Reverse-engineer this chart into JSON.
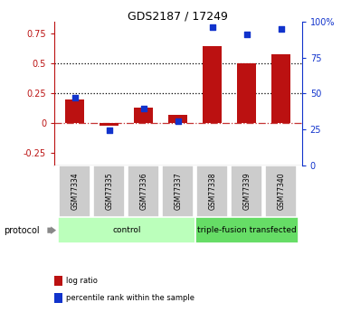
{
  "title": "GDS2187 / 17249",
  "samples": [
    "GSM77334",
    "GSM77335",
    "GSM77336",
    "GSM77337",
    "GSM77338",
    "GSM77339",
    "GSM77340"
  ],
  "log_ratio": [
    0.2,
    -0.02,
    0.13,
    0.07,
    0.65,
    0.5,
    0.58
  ],
  "percentile_rank": [
    47,
    24.5,
    39.5,
    30.5,
    96,
    91,
    95
  ],
  "bar_color": "#bb1111",
  "dot_color": "#1133cc",
  "left_ylim": [
    -0.35,
    0.85
  ],
  "right_ylim": [
    0,
    100
  ],
  "left_yticks": [
    -0.25,
    0.0,
    0.25,
    0.5,
    0.75
  ],
  "right_yticks": [
    0,
    25,
    50,
    75,
    100
  ],
  "left_yticklabels": [
    "-0.25",
    "0",
    "0.25",
    "0.5",
    "0.75"
  ],
  "right_yticklabels": [
    "0",
    "25",
    "50",
    "75",
    "100%"
  ],
  "hlines_black": [
    0.25,
    0.5
  ],
  "hline_red": 0.0,
  "protocol_groups": [
    {
      "label": "control",
      "start": 0,
      "end": 4,
      "color": "#bbffbb"
    },
    {
      "label": "triple-fusion transfected",
      "start": 4,
      "end": 7,
      "color": "#66dd66"
    }
  ],
  "protocol_label": "protocol",
  "legend_items": [
    {
      "label": "log ratio",
      "color": "#bb1111"
    },
    {
      "label": "percentile rank within the sample",
      "color": "#1133cc"
    }
  ],
  "sample_box_color": "#cccccc",
  "title_fontsize": 9,
  "tick_fontsize": 7,
  "label_fontsize": 6,
  "sample_fontsize": 5.5,
  "protocol_fontsize": 6.5
}
